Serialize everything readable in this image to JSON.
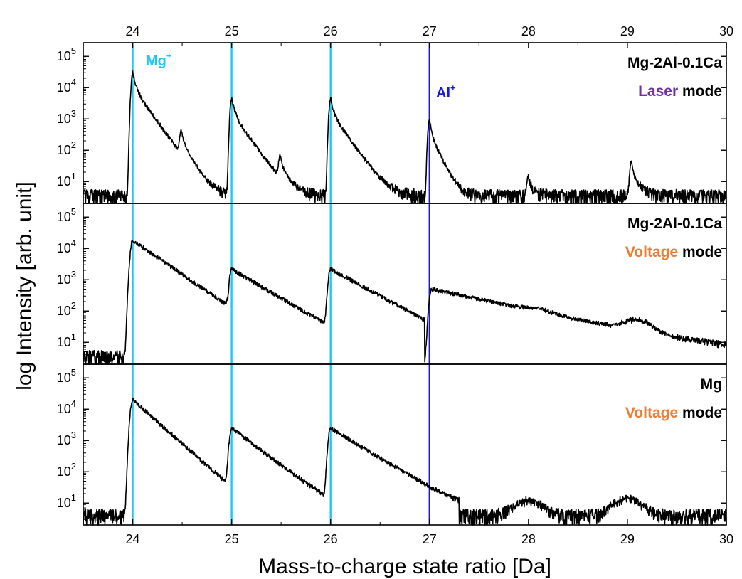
{
  "chart_data": {
    "type": "line",
    "xlabel": "Mass-to-charge state ratio [Da]",
    "ylabel": "log Intensity [arb. unit]",
    "xlim": [
      23.5,
      30
    ],
    "ylim": [
      2,
      100000
    ],
    "y_scale": "log",
    "x_ticks": [
      "24",
      "25",
      "26",
      "27",
      "28",
      "29",
      "30"
    ],
    "y_ticks": [
      {
        "base": "10",
        "exp": "1"
      },
      {
        "base": "10",
        "exp": "2"
      },
      {
        "base": "10",
        "exp": "3"
      },
      {
        "base": "10",
        "exp": "4"
      },
      {
        "base": "10",
        "exp": "5"
      }
    ],
    "reference_lines": [
      {
        "label": "Mg",
        "charge": "+",
        "x": [
          24,
          25,
          26
        ],
        "color": "#1ec8f0"
      },
      {
        "label": "Al",
        "charge": "+",
        "x": [
          27
        ],
        "color": "#1a1ad6"
      }
    ],
    "panels": [
      {
        "label_line1": "Mg-2Al-0.1Ca",
        "label_mode_word": "Laser",
        "label_mode_color": "#7030a0",
        "label_mode_suffix": " mode",
        "type": "laser",
        "baseline": 3,
        "peaks": [
          {
            "x": 24.0,
            "height": 30000
          },
          {
            "x": 24.49,
            "height": 380
          },
          {
            "x": 25.0,
            "height": 4500
          },
          {
            "x": 25.49,
            "height": 55
          },
          {
            "x": 26.0,
            "height": 4500
          },
          {
            "x": 27.0,
            "height": 1000
          },
          {
            "x": 28.0,
            "height": 11
          },
          {
            "x": 29.04,
            "height": 42
          }
        ]
      },
      {
        "label_line1": "Mg-2Al-0.1Ca",
        "label_mode_word": "Voltage",
        "label_mode_color": "#ed7d31",
        "label_mode_suffix": " mode",
        "type": "voltage",
        "baseline": 3,
        "peaks": [
          {
            "x": 24.0,
            "height": 18000,
            "end": 24.96,
            "end_value": 150
          },
          {
            "x": 25.0,
            "height": 2200,
            "end": 25.96,
            "end_value": 35
          },
          {
            "x": 26.0,
            "height": 2200,
            "end": 26.95,
            "end_value": 50
          },
          {
            "x": 27.02,
            "height": 500,
            "end": 30.0,
            "end_value": 5
          }
        ],
        "bumps": [
          {
            "x": 28.1,
            "height": 22
          },
          {
            "x": 29.1,
            "height": 30
          }
        ]
      },
      {
        "label_line1": "Mg",
        "label_mode_word": "Voltage",
        "label_mode_color": "#ed7d31",
        "label_mode_suffix": " mode",
        "type": "voltage",
        "baseline": 3.5,
        "peaks": [
          {
            "x": 24.0,
            "height": 20000,
            "end": 24.96,
            "end_value": 40
          },
          {
            "x": 25.0,
            "height": 2500,
            "end": 25.96,
            "end_value": 13
          },
          {
            "x": 26.0,
            "height": 2500,
            "end": 27.3,
            "end_value": 8
          }
        ],
        "bumps": [
          {
            "x": 28.0,
            "height": 8
          },
          {
            "x": 29.0,
            "height": 10
          }
        ]
      }
    ]
  }
}
